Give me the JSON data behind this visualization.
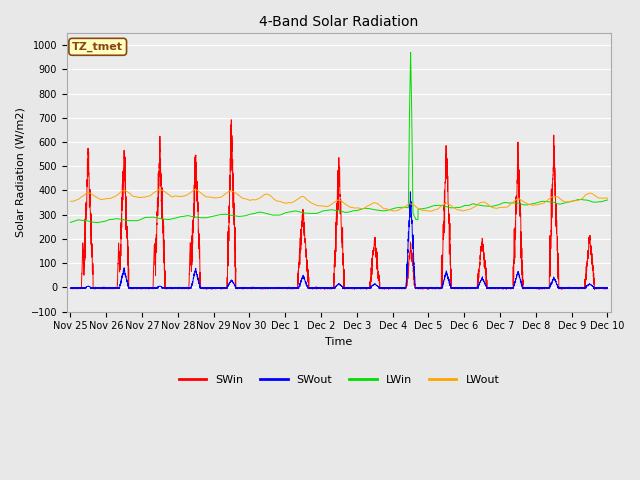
{
  "title": "4-Band Solar Radiation",
  "ylabel": "Solar Radiation (W/m2)",
  "xlabel": "Time",
  "ylim": [
    -100,
    1050
  ],
  "yticks": [
    -100,
    0,
    100,
    200,
    300,
    400,
    500,
    600,
    700,
    800,
    900,
    1000
  ],
  "annotation": "TZ_tmet",
  "annotation_color": "#8B4513",
  "annotation_bg": "#FFFFC0",
  "annotation_edge": "#8B4513",
  "colors": {
    "SWin": "#FF0000",
    "SWout": "#0000FF",
    "LWin": "#00DD00",
    "LWout": "#FFA500"
  },
  "bg_color": "#E8E8E8",
  "plot_bg": "#EBEBEB",
  "grid_color": "#FFFFFF",
  "tick_labels": [
    "Nov 25",
    "Nov 26",
    "Nov 27",
    "Nov 28",
    "Nov 29",
    "Nov 30",
    "Dec 1",
    "Dec 2",
    "Dec 3",
    "Dec 4",
    "Dec 5",
    "Dec 6",
    "Dec 7",
    "Dec 8",
    "Dec 9",
    "Dec 10"
  ],
  "tick_positions": [
    0,
    1,
    2,
    3,
    4,
    5,
    6,
    7,
    8,
    9,
    10,
    11,
    12,
    13,
    14,
    15
  ],
  "xlim": [
    -0.1,
    15.1
  ],
  "figsize": [
    6.4,
    4.8
  ],
  "dpi": 100,
  "title_fontsize": 10,
  "label_fontsize": 8,
  "tick_fontsize": 7,
  "legend_fontsize": 8
}
